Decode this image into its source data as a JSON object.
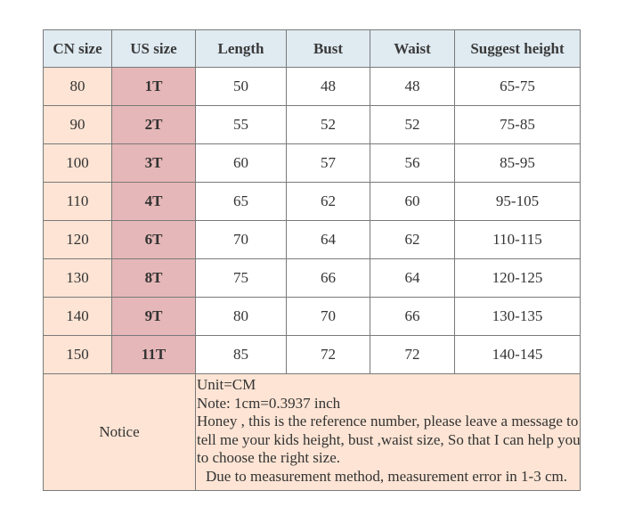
{
  "headers": [
    "CN size",
    "US size",
    "Length",
    "Bust",
    "Waist",
    "Suggest height"
  ],
  "rows": [
    [
      "80",
      "1T",
      "50",
      "48",
      "48",
      "65-75"
    ],
    [
      "90",
      "2T",
      "55",
      "52",
      "52",
      "75-85"
    ],
    [
      "100",
      "3T",
      "60",
      "57",
      "56",
      "85-95"
    ],
    [
      "110",
      "4T",
      "65",
      "62",
      "60",
      "95-105"
    ],
    [
      "120",
      "6T",
      "70",
      "64",
      "62",
      "110-115"
    ],
    [
      "130",
      "8T",
      "75",
      "66",
      "64",
      "120-125"
    ],
    [
      "140",
      "9T",
      "80",
      "70",
      "66",
      "130-135"
    ],
    [
      "150",
      "11T",
      "85",
      "72",
      "72",
      "140-145"
    ]
  ],
  "notice": {
    "label": "Notice",
    "lines": [
      "Unit=CM",
      "Note: 1cm=0.3937 inch",
      "Honey , this is the reference number, please leave a message to",
      "tell me your kids height, bust ,waist size, So that I can help you",
      "to choose the right size.",
      "Due to measurement method, measurement error in 1-3 cm."
    ]
  },
  "colors": {
    "header_bg": "#dfeaf1",
    "cn_bg": "#fde4d4",
    "us_bg": "#e6b7b8",
    "notice_bg": "#fde4d4",
    "border": "#7a7a7a"
  }
}
